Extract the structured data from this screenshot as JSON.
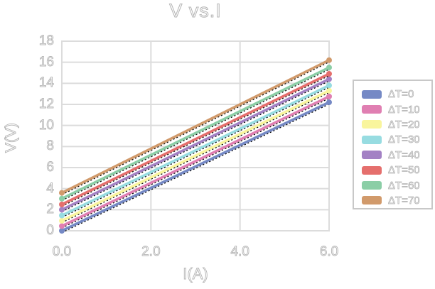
{
  "chart_data": {
    "type": "line",
    "title": "V vs.I",
    "xlabel": "I(A)",
    "ylabel": "V(V)",
    "xlim": [
      0,
      6
    ],
    "ylim": [
      0,
      18
    ],
    "grid": true,
    "legend_position": "right",
    "xticks": {
      "values": [
        0,
        2,
        4,
        6
      ],
      "labels": [
        "0.0",
        "2.0",
        "4.0",
        "6.0"
      ]
    },
    "yticks": {
      "values": [
        0,
        2,
        4,
        6,
        8,
        10,
        12,
        14,
        16,
        18
      ],
      "labels": [
        "0",
        "2",
        "4",
        "6",
        "8",
        "10",
        "12",
        "14",
        "16",
        "18"
      ]
    },
    "x": [
      0,
      6
    ],
    "series": [
      {
        "name": "ΔT=0",
        "color": "#7589c5",
        "values": [
          0.0,
          12.2
        ]
      },
      {
        "name": "ΔT=10",
        "color": "#e07fb2",
        "values": [
          0.45,
          12.75
        ]
      },
      {
        "name": "ΔT=20",
        "color": "#f9f59d",
        "values": [
          0.95,
          13.3
        ]
      },
      {
        "name": "ΔT=30",
        "color": "#97dce1",
        "values": [
          1.45,
          13.8
        ]
      },
      {
        "name": "ΔT=40",
        "color": "#a381c4",
        "values": [
          2.0,
          14.4
        ]
      },
      {
        "name": "ΔT=50",
        "color": "#e56f6d",
        "values": [
          2.5,
          14.9
        ]
      },
      {
        "name": "ΔT=60",
        "color": "#8bcea6",
        "values": [
          3.05,
          15.5
        ]
      },
      {
        "name": "ΔT=70",
        "color": "#d19a6b",
        "values": [
          3.6,
          16.2
        ]
      }
    ],
    "fit_lines": {
      "color": "#000000",
      "style": "dotted"
    }
  },
  "colors": {
    "background": "#ffffff",
    "grid": "#dcdcdc",
    "text_outline": "#b4b4b4",
    "legend_border": "#c8c8c8"
  }
}
